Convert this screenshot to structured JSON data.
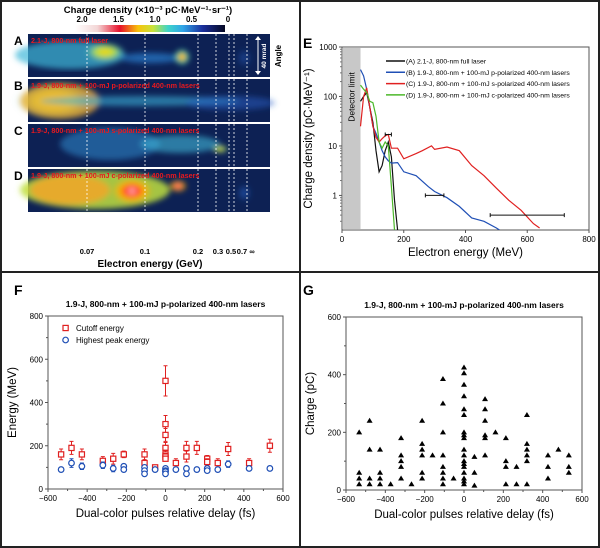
{
  "figure": {
    "panels": {
      "A_D": {
        "colorbar_title": "Charge density (×10⁻³ pC·MeV⁻¹·sr⁻¹)",
        "colorbar_ticks": [
          "2.0",
          "1.5",
          "1.0",
          "0.5",
          "0"
        ],
        "rows": [
          {
            "label": "A",
            "caption": "2.1-J, 800-nm full laser"
          },
          {
            "label": "B",
            "caption": "1.9-J, 800-nm + 100-mJ p-polarized 400-nm lasers"
          },
          {
            "label": "C",
            "caption": "1.9-J, 800-nm + 100-mJ s-polarized 400-nm lasers"
          },
          {
            "label": "D",
            "caption": "1.9-J, 800-nm + 100-mJ c-polarized 400-nm lasers"
          }
        ],
        "x_ticks": [
          "0.07",
          "0.1",
          "0.2",
          "0.3",
          "0.5",
          "0.7",
          "∞"
        ],
        "xlabel": "Electron energy (GeV)",
        "angle_label": "Angle",
        "angle_scale": "40 mrad"
      },
      "E": {
        "label": "E"
      },
      "F": {
        "label": "F"
      },
      "G": {
        "label": "G"
      }
    }
  },
  "chart_data": [
    {
      "id": "E",
      "type": "line",
      "title": "",
      "xlabel": "Electron energy (MeV)",
      "ylabel": "Charge density (pC·MeV⁻¹)",
      "xlim": [
        0,
        800
      ],
      "ylim": [
        0.2,
        1000
      ],
      "yscale": "log",
      "x_ticks": [
        0,
        200,
        400,
        600,
        800
      ],
      "y_ticks": [
        {
          "v": 1,
          "label": "1"
        },
        {
          "v": 10,
          "label": "10"
        },
        {
          "v": 100,
          "label": "100"
        },
        {
          "v": 1000,
          "label": "1000"
        }
      ],
      "shaded_region": {
        "label": "Detector limit",
        "x": [
          0,
          60
        ]
      },
      "legend_position": "top-right",
      "series": [
        {
          "name": "(A) 2.1-J, 800-nm full laser",
          "color": "#111111",
          "points": [
            [
              60,
              80
            ],
            [
              70,
              100
            ],
            [
              80,
              120
            ],
            [
              90,
              60
            ],
            [
              100,
              30
            ],
            [
              110,
              8
            ],
            [
              120,
              3
            ],
            [
              130,
              4
            ],
            [
              140,
              8
            ],
            [
              150,
              12
            ],
            [
              160,
              6
            ],
            [
              170,
              0.8
            ],
            [
              180,
              0.2
            ]
          ]
        },
        {
          "name": "(B) 1.9-J, 800-nm + 100-mJ p-polarized 400-nm lasers",
          "color": "#1f4fb5",
          "points": [
            [
              60,
              350
            ],
            [
              70,
              260
            ],
            [
              80,
              140
            ],
            [
              90,
              60
            ],
            [
              100,
              25
            ],
            [
              110,
              18
            ],
            [
              120,
              12
            ],
            [
              130,
              8
            ],
            [
              140,
              6
            ],
            [
              150,
              5
            ],
            [
              160,
              4.5
            ],
            [
              180,
              4.6
            ],
            [
              200,
              3
            ],
            [
              240,
              2.5
            ],
            [
              280,
              1.5
            ],
            [
              300,
              1.2
            ],
            [
              340,
              0.9
            ],
            [
              380,
              0.6
            ],
            [
              420,
              0.35
            ],
            [
              460,
              0.3
            ],
            [
              500,
              0.22
            ],
            [
              510,
              0.2
            ]
          ]
        },
        {
          "name": "(C) 1.9-J, 800-nm + 100-mJ s-polarized 400-nm lasers",
          "color": "#e02020",
          "points": [
            [
              60,
              25
            ],
            [
              70,
              100
            ],
            [
              80,
              150
            ],
            [
              90,
              60
            ],
            [
              100,
              25
            ],
            [
              110,
              15
            ],
            [
              120,
              12
            ],
            [
              130,
              14
            ],
            [
              140,
              16
            ],
            [
              150,
              17
            ],
            [
              160,
              9
            ],
            [
              180,
              9
            ],
            [
              200,
              5.5
            ],
            [
              240,
              7
            ],
            [
              260,
              8
            ],
            [
              290,
              10
            ],
            [
              300,
              8.5
            ],
            [
              340,
              9.5
            ],
            [
              380,
              8
            ],
            [
              420,
              4
            ],
            [
              460,
              2.5
            ],
            [
              500,
              1.4
            ],
            [
              540,
              0.8
            ],
            [
              580,
              0.5
            ],
            [
              620,
              0.27
            ],
            [
              640,
              0.22
            ]
          ]
        },
        {
          "name": "(D) 1.9-J, 800-nm + 100-mJ c-polarized 400-nm lasers",
          "color": "#4cb82a",
          "points": [
            [
              60,
              170
            ],
            [
              70,
              140
            ],
            [
              80,
              120
            ],
            [
              90,
              80
            ],
            [
              100,
              75
            ],
            [
              110,
              40
            ],
            [
              120,
              12
            ],
            [
              130,
              9
            ],
            [
              140,
              12
            ],
            [
              150,
              10
            ],
            [
              160,
              1.5
            ],
            [
              170,
              0.2
            ]
          ]
        }
      ],
      "error_bars_x": [
        {
          "y": 17,
          "x": [
            140,
            160
          ]
        },
        {
          "y": 1,
          "x": [
            270,
            330
          ]
        },
        {
          "y": 0.4,
          "x": [
            480,
            720
          ]
        }
      ]
    },
    {
      "id": "F",
      "type": "scatter",
      "title": "1.9-J, 800-nm + 100-mJ p-polarized 400-nm lasers",
      "xlabel": "Dual-color pulses relative delay (fs)",
      "ylabel": "Energy (MeV)",
      "xlim": [
        -600,
        600
      ],
      "ylim": [
        0,
        800
      ],
      "x_ticks": [
        -600,
        -400,
        -200,
        0,
        200,
        400,
        600
      ],
      "y_ticks": [
        0,
        200,
        400,
        600,
        800
      ],
      "legend_position": "top-left",
      "series": [
        {
          "name": "Cutoff energy",
          "color": "#e02020",
          "marker": "square",
          "points": [
            [
              -533,
              160,
              25
            ],
            [
              -480,
              190,
              30
            ],
            [
              -427,
              160,
              25
            ],
            [
              -320,
              130,
              20
            ],
            [
              -267,
              140,
              25
            ],
            [
              -213,
              160,
              15
            ],
            [
              -107,
              160,
              25
            ],
            [
              -107,
              120,
              15
            ],
            [
              -53,
              100,
              5
            ],
            [
              0,
              500,
              70
            ],
            [
              0,
              300,
              40
            ],
            [
              0,
              250,
              30
            ],
            [
              0,
              190,
              25
            ],
            [
              0,
              160,
              20
            ],
            [
              0,
              150,
              15
            ],
            [
              0,
              140,
              10
            ],
            [
              53,
              120,
              20
            ],
            [
              107,
              190,
              30
            ],
            [
              107,
              150,
              25
            ],
            [
              160,
              190,
              30
            ],
            [
              213,
              140,
              15
            ],
            [
              213,
              125,
              15
            ],
            [
              267,
              120,
              20
            ],
            [
              320,
              185,
              30
            ],
            [
              427,
              120,
              20
            ],
            [
              533,
              200,
              30
            ]
          ]
        },
        {
          "name": "Highest peak energy",
          "color": "#1f4fb5",
          "marker": "circle",
          "points": [
            [
              -533,
              90,
              10
            ],
            [
              -480,
              120,
              20
            ],
            [
              -427,
              105,
              15
            ],
            [
              -320,
              110,
              15
            ],
            [
              -267,
              95,
              15
            ],
            [
              -213,
              105,
              10
            ],
            [
              -213,
              90,
              10
            ],
            [
              -107,
              100,
              10
            ],
            [
              -107,
              85,
              10
            ],
            [
              -107,
              70,
              10
            ],
            [
              -53,
              90,
              10
            ],
            [
              0,
              95,
              10
            ],
            [
              0,
              85,
              10
            ],
            [
              0,
              80,
              10
            ],
            [
              0,
              70,
              10
            ],
            [
              53,
              90,
              10
            ],
            [
              107,
              95,
              10
            ],
            [
              107,
              70,
              10
            ],
            [
              160,
              90,
              10
            ],
            [
              213,
              95,
              10
            ],
            [
              213,
              85,
              10
            ],
            [
              267,
              90,
              10
            ],
            [
              320,
              115,
              15
            ],
            [
              427,
              95,
              10
            ],
            [
              533,
              95,
              10
            ]
          ]
        }
      ]
    },
    {
      "id": "G",
      "type": "scatter",
      "title": "1.9-J, 800-nm + 100-mJ p-polarized 400-nm lasers",
      "xlabel": "Dual-color pulses relative delay (fs)",
      "ylabel": "Charge (pC)",
      "xlim": [
        -600,
        600
      ],
      "ylim": [
        0,
        600
      ],
      "x_ticks": [
        -600,
        -400,
        -200,
        0,
        200,
        400,
        600
      ],
      "y_ticks": [
        0,
        200,
        400,
        600
      ],
      "series": [
        {
          "name": "Charge",
          "color": "#000000",
          "marker": "triangle",
          "points": [
            [
              -533,
              200
            ],
            [
              -533,
              60
            ],
            [
              -533,
              40
            ],
            [
              -533,
              20
            ],
            [
              -480,
              240
            ],
            [
              -480,
              140
            ],
            [
              -480,
              40
            ],
            [
              -480,
              20
            ],
            [
              -427,
              140
            ],
            [
              -427,
              60
            ],
            [
              -427,
              40
            ],
            [
              -427,
              20
            ],
            [
              -373,
              20
            ],
            [
              -320,
              180
            ],
            [
              -320,
              120
            ],
            [
              -320,
              100
            ],
            [
              -320,
              80
            ],
            [
              -320,
              40
            ],
            [
              -267,
              20
            ],
            [
              -213,
              240
            ],
            [
              -213,
              160
            ],
            [
              -213,
              140
            ],
            [
              -213,
              120
            ],
            [
              -213,
              60
            ],
            [
              -213,
              40
            ],
            [
              -160,
              120
            ],
            [
              -107,
              385
            ],
            [
              -107,
              300
            ],
            [
              -107,
              200
            ],
            [
              -107,
              120
            ],
            [
              -107,
              80
            ],
            [
              -107,
              60
            ],
            [
              -107,
              40
            ],
            [
              -107,
              20
            ],
            [
              -53,
              40
            ],
            [
              0,
              425
            ],
            [
              0,
              405
            ],
            [
              0,
              365
            ],
            [
              0,
              325
            ],
            [
              0,
              280
            ],
            [
              0,
              260
            ],
            [
              0,
              200
            ],
            [
              0,
              190
            ],
            [
              0,
              180
            ],
            [
              0,
              140
            ],
            [
              0,
              120
            ],
            [
              0,
              100
            ],
            [
              0,
              90
            ],
            [
              0,
              80
            ],
            [
              0,
              60
            ],
            [
              0,
              40
            ],
            [
              0,
              30
            ],
            [
              0,
              20
            ],
            [
              53,
              115
            ],
            [
              53,
              60
            ],
            [
              53,
              15
            ],
            [
              107,
              315
            ],
            [
              107,
              280
            ],
            [
              107,
              240
            ],
            [
              107,
              190
            ],
            [
              107,
              180
            ],
            [
              107,
              120
            ],
            [
              160,
              200
            ],
            [
              213,
              180
            ],
            [
              213,
              100
            ],
            [
              213,
              80
            ],
            [
              213,
              20
            ],
            [
              267,
              80
            ],
            [
              267,
              20
            ],
            [
              320,
              260
            ],
            [
              320,
              160
            ],
            [
              320,
              140
            ],
            [
              320,
              120
            ],
            [
              320,
              100
            ],
            [
              320,
              20
            ],
            [
              427,
              120
            ],
            [
              427,
              80
            ],
            [
              427,
              40
            ],
            [
              480,
              140
            ],
            [
              533,
              120
            ],
            [
              533,
              80
            ],
            [
              533,
              60
            ]
          ]
        }
      ]
    }
  ]
}
